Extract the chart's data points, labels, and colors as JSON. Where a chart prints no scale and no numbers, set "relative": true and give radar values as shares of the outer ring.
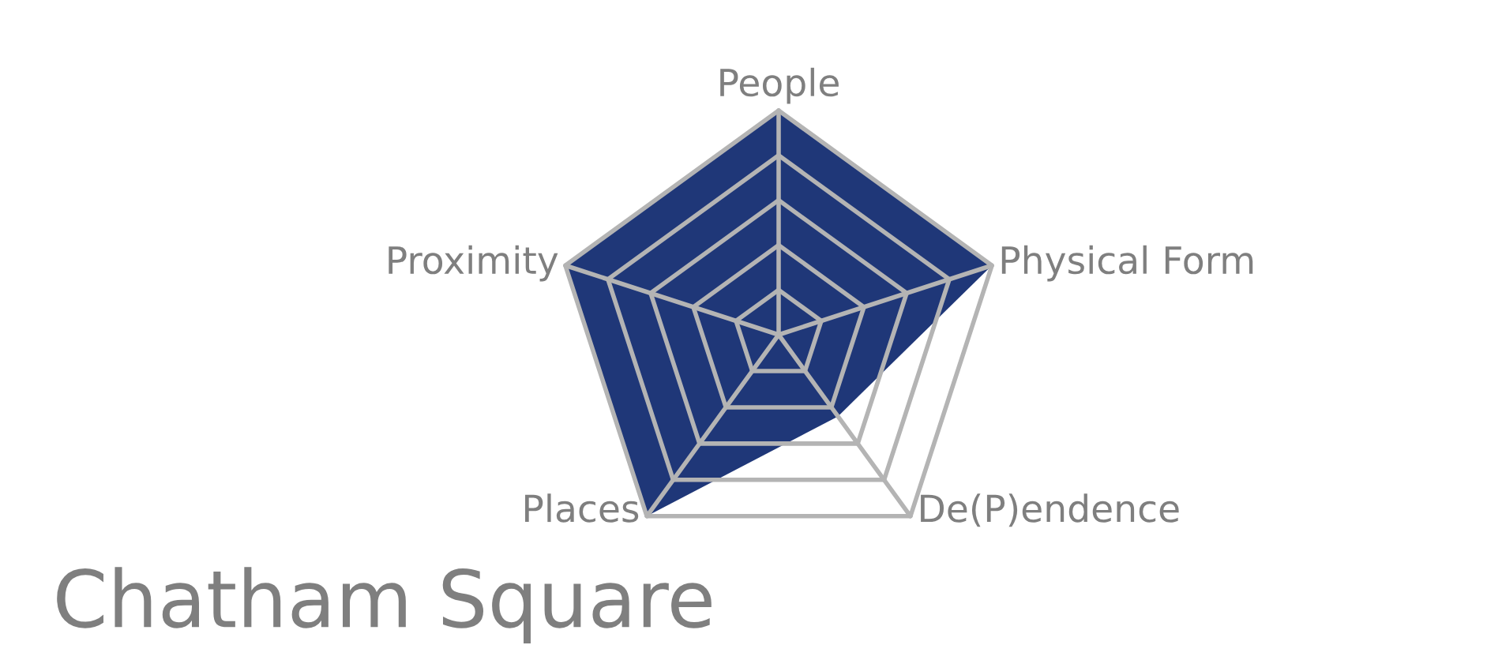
{
  "chart_data": {
    "type": "radar",
    "title": "Chatham Square",
    "relative": true,
    "grid": true,
    "legend": false,
    "categories": [
      "People",
      "Physical Form",
      "De(P)endence",
      "Places",
      "Proximity"
    ],
    "series": [
      {
        "color": "#1f3778",
        "values": [
          1,
          1,
          0.45,
          1,
          1
        ]
      }
    ]
  }
}
